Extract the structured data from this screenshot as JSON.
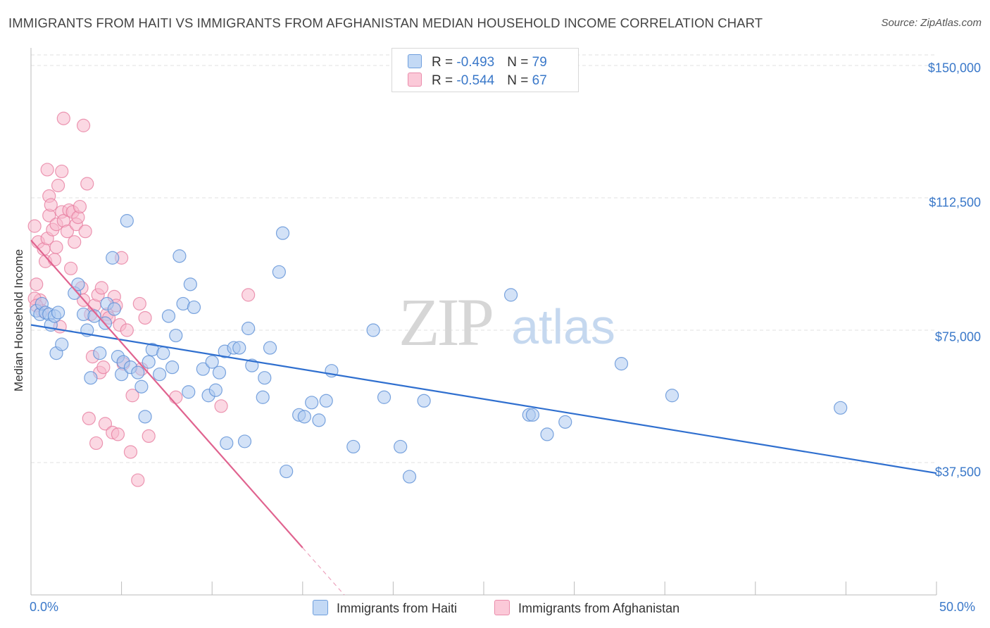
{
  "title": "IMMIGRANTS FROM HAITI VS IMMIGRANTS FROM AFGHANISTAN MEDIAN HOUSEHOLD INCOME CORRELATION CHART",
  "source": "Source: ZipAtlas.com",
  "watermark": {
    "zip": "ZIP",
    "atlas": "atlas"
  },
  "colors": {
    "haiti_fill": "#aecbf0",
    "haiti_stroke": "#5b8fd6",
    "haiti_line": "#2f6fcf",
    "afgh_fill": "#f7b8cc",
    "afgh_stroke": "#e77ea0",
    "afgh_line": "#e0638f",
    "tick_text": "#3a78c9",
    "grid": "#e2e2e2"
  },
  "legend": {
    "rows": [
      {
        "r_label": "R = ",
        "r_value": "-0.493",
        "n_label": "N = ",
        "n_value": "79"
      },
      {
        "r_label": "R = ",
        "r_value": "-0.544",
        "n_label": "N = ",
        "n_value": "67"
      }
    ]
  },
  "bottom_legend": {
    "haiti": "Immigrants from Haiti",
    "afghanistan": "Immigrants from Afghanistan"
  },
  "chart_data": {
    "type": "scatter",
    "title": "IMMIGRANTS FROM HAITI VS IMMIGRANTS FROM AFGHANISTAN MEDIAN HOUSEHOLD INCOME CORRELATION CHART",
    "xlabel": "",
    "ylabel": "Median Household Income",
    "xlim": [
      0,
      50
    ],
    "ylim": [
      0,
      153000
    ],
    "x_tick_labels": [
      "0.0%",
      "50.0%"
    ],
    "y_ticks": [
      37500,
      75000,
      112500,
      150000
    ],
    "y_tick_labels": [
      "$37,500",
      "$75,000",
      "$112,500",
      "$150,000"
    ],
    "grid": true,
    "legend_position": "top-center",
    "series": [
      {
        "name": "Immigrants from Haiti",
        "r": -0.493,
        "n": 79,
        "trend": {
          "x": [
            0,
            50
          ],
          "y": [
            76500,
            34500
          ],
          "dashed_after": null
        },
        "points": [
          [
            0.3,
            80500
          ],
          [
            0.5,
            79500
          ],
          [
            0.6,
            82500
          ],
          [
            0.8,
            80000
          ],
          [
            1.0,
            79500
          ],
          [
            1.1,
            76500
          ],
          [
            1.3,
            79000
          ],
          [
            1.5,
            80000
          ],
          [
            1.4,
            68500
          ],
          [
            1.7,
            71000
          ],
          [
            2.4,
            85500
          ],
          [
            2.6,
            88000
          ],
          [
            2.9,
            79500
          ],
          [
            3.1,
            75000
          ],
          [
            3.3,
            61500
          ],
          [
            3.5,
            79000
          ],
          [
            3.8,
            68500
          ],
          [
            4.1,
            77000
          ],
          [
            4.2,
            82500
          ],
          [
            4.5,
            95500
          ],
          [
            4.6,
            81000
          ],
          [
            4.8,
            67500
          ],
          [
            5.0,
            62500
          ],
          [
            5.1,
            66000
          ],
          [
            5.3,
            106000
          ],
          [
            5.5,
            64500
          ],
          [
            5.9,
            63000
          ],
          [
            6.1,
            59000
          ],
          [
            6.3,
            50500
          ],
          [
            6.5,
            66000
          ],
          [
            6.7,
            69500
          ],
          [
            7.1,
            62500
          ],
          [
            7.3,
            68500
          ],
          [
            7.6,
            79000
          ],
          [
            7.8,
            64500
          ],
          [
            8.0,
            73500
          ],
          [
            8.2,
            96000
          ],
          [
            8.4,
            82500
          ],
          [
            8.7,
            57500
          ],
          [
            8.8,
            88000
          ],
          [
            9.0,
            81500
          ],
          [
            9.5,
            64000
          ],
          [
            9.8,
            56500
          ],
          [
            10.0,
            66000
          ],
          [
            10.2,
            58000
          ],
          [
            10.4,
            63000
          ],
          [
            10.7,
            69000
          ],
          [
            10.8,
            43000
          ],
          [
            11.2,
            70000
          ],
          [
            11.5,
            70000
          ],
          [
            11.8,
            43500
          ],
          [
            12.0,
            75500
          ],
          [
            12.2,
            65000
          ],
          [
            12.8,
            56000
          ],
          [
            12.9,
            61500
          ],
          [
            13.2,
            70000
          ],
          [
            13.7,
            91500
          ],
          [
            13.9,
            102500
          ],
          [
            14.1,
            35000
          ],
          [
            14.8,
            51000
          ],
          [
            15.1,
            50500
          ],
          [
            15.5,
            54500
          ],
          [
            15.9,
            49500
          ],
          [
            16.3,
            55000
          ],
          [
            16.6,
            63500
          ],
          [
            17.8,
            42000
          ],
          [
            18.9,
            75000
          ],
          [
            19.5,
            56000
          ],
          [
            20.4,
            42000
          ],
          [
            20.9,
            33500
          ],
          [
            21.7,
            55000
          ],
          [
            26.5,
            85000
          ],
          [
            27.5,
            51000
          ],
          [
            27.7,
            51000
          ],
          [
            28.5,
            45500
          ],
          [
            29.5,
            49000
          ],
          [
            32.6,
            65500
          ],
          [
            35.4,
            56500
          ],
          [
            44.7,
            53000
          ]
        ]
      },
      {
        "name": "Immigrants from Afghanistan",
        "r": -0.544,
        "n": 67,
        "trend": {
          "x": [
            0,
            17.3
          ],
          "y": [
            100500,
            0
          ],
          "solid_until_x": 15.0
        },
        "points": [
          [
            0.2,
            104500
          ],
          [
            0.3,
            88000
          ],
          [
            0.4,
            100000
          ],
          [
            0.5,
            83500
          ],
          [
            0.6,
            80500
          ],
          [
            0.7,
            98000
          ],
          [
            0.8,
            94500
          ],
          [
            0.9,
            120500
          ],
          [
            0.9,
            101000
          ],
          [
            1.0,
            113000
          ],
          [
            1.0,
            107500
          ],
          [
            1.1,
            110500
          ],
          [
            1.2,
            103500
          ],
          [
            1.3,
            95000
          ],
          [
            1.4,
            105000
          ],
          [
            1.4,
            98500
          ],
          [
            1.5,
            116000
          ],
          [
            1.6,
            76000
          ],
          [
            1.7,
            120000
          ],
          [
            1.7,
            108500
          ],
          [
            1.8,
            106000
          ],
          [
            2.0,
            103000
          ],
          [
            2.1,
            109000
          ],
          [
            2.2,
            92500
          ],
          [
            2.3,
            108500
          ],
          [
            2.4,
            100000
          ],
          [
            2.5,
            105000
          ],
          [
            2.6,
            107000
          ],
          [
            2.7,
            110000
          ],
          [
            2.8,
            87000
          ],
          [
            3.0,
            103000
          ],
          [
            3.1,
            116500
          ],
          [
            2.9,
            83500
          ],
          [
            3.2,
            50000
          ],
          [
            3.3,
            79500
          ],
          [
            3.4,
            67500
          ],
          [
            3.5,
            82000
          ],
          [
            3.6,
            43000
          ],
          [
            3.7,
            85000
          ],
          [
            3.8,
            63000
          ],
          [
            3.9,
            87000
          ],
          [
            4.0,
            64500
          ],
          [
            4.1,
            48500
          ],
          [
            4.2,
            79500
          ],
          [
            4.3,
            78500
          ],
          [
            4.5,
            46000
          ],
          [
            4.6,
            84500
          ],
          [
            4.7,
            82000
          ],
          [
            4.8,
            45500
          ],
          [
            4.9,
            76500
          ],
          [
            5.0,
            95500
          ],
          [
            5.1,
            65500
          ],
          [
            5.3,
            75000
          ],
          [
            5.5,
            40500
          ],
          [
            5.6,
            56500
          ],
          [
            5.9,
            32500
          ],
          [
            6.0,
            82500
          ],
          [
            6.1,
            64000
          ],
          [
            6.3,
            78500
          ],
          [
            6.5,
            45000
          ],
          [
            8.0,
            56000
          ],
          [
            10.5,
            53500
          ],
          [
            12.0,
            85000
          ],
          [
            1.8,
            135000
          ],
          [
            2.9,
            133000
          ],
          [
            0.2,
            84000
          ],
          [
            0.3,
            82000
          ]
        ]
      }
    ]
  }
}
